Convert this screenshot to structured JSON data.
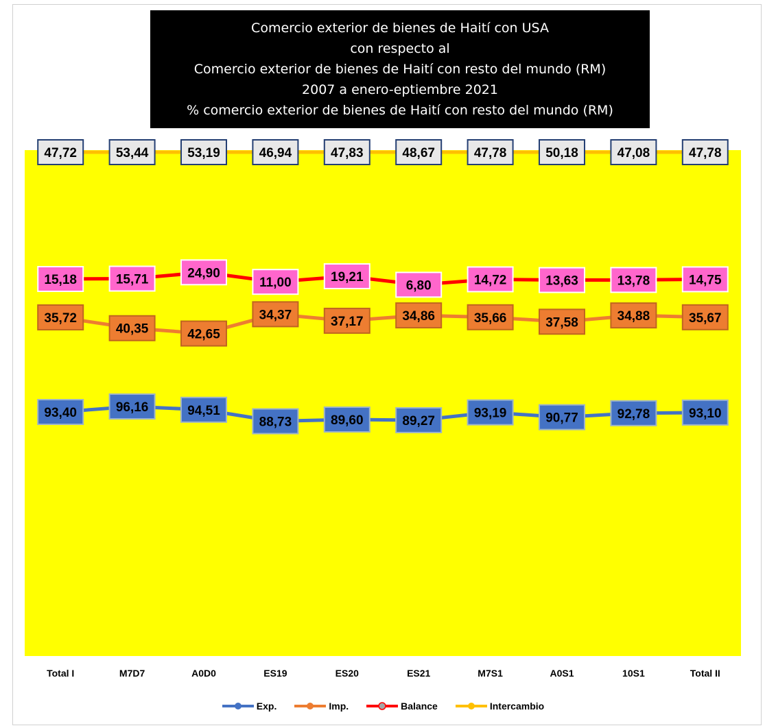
{
  "title_lines": [
    "Comercio exterior de bienes de Haití con USA",
    "con respecto al",
    "Comercio exterior de bienes de Haití con resto del mundo (RM)",
    "2007 a enero-eptiembre 2021",
    "% comercio exterior de bienes de Haití con resto del mundo (RM)"
  ],
  "colors": {
    "plot_background": "#FFFF00",
    "exp": "#4472C4",
    "imp": "#ED7D31",
    "balance": "#FF0000",
    "intercambio": "#FFC000",
    "balance_label_fill": "#FF66CC",
    "intercambio_label_fill": "#E8E8E8"
  },
  "chart_data": {
    "type": "line",
    "title": "Comercio exterior de bienes de Haití con USA con respecto al Comercio exterior de bienes de Haití con resto del mundo (RM) 2007 a enero-eptiembre 2021 % comercio exterior de bienes de Haití con resto del mundo (RM)",
    "categories": [
      "Total I",
      "M7D7",
      "A0D0",
      "ES19",
      "ES20",
      "ES21",
      "M7S1",
      "A0S1",
      "10S1",
      "Total II"
    ],
    "series": [
      {
        "name": "Exp.",
        "values": [
          93.4,
          96.16,
          94.51,
          88.73,
          89.6,
          89.27,
          93.19,
          90.77,
          92.78,
          93.1
        ],
        "labels": [
          "93,40",
          "96,16",
          "94,51",
          "88,73",
          "89,60",
          "89,27",
          "93,19",
          "90,77",
          "92,78",
          "93,10"
        ]
      },
      {
        "name": "Imp.",
        "values": [
          35.72,
          40.35,
          42.65,
          34.37,
          37.17,
          34.86,
          35.66,
          37.58,
          34.88,
          35.67
        ],
        "labels": [
          "35,72",
          "40,35",
          "42,65",
          "34,37",
          "37,17",
          "34,86",
          "35,66",
          "37,58",
          "34,88",
          "35,67"
        ]
      },
      {
        "name": "Balance",
        "values": [
          15.18,
          15.71,
          24.9,
          11.0,
          19.21,
          6.8,
          14.72,
          13.63,
          13.78,
          14.75
        ],
        "labels": [
          "15,18",
          "15,71",
          "24,90",
          "11,00",
          "19,21",
          "6,80",
          "14,72",
          "13,63",
          "13,78",
          "14,75"
        ]
      },
      {
        "name": "Intercambio",
        "values": [
          47.72,
          53.44,
          53.19,
          46.94,
          47.83,
          48.67,
          47.78,
          50.18,
          47.08,
          47.78
        ],
        "labels": [
          "47,72",
          "53,44",
          "53,19",
          "46,94",
          "47,83",
          "48,67",
          "47,78",
          "50,18",
          "47,08",
          "47,78"
        ]
      }
    ],
    "legend_position": "bottom",
    "grid": false
  }
}
